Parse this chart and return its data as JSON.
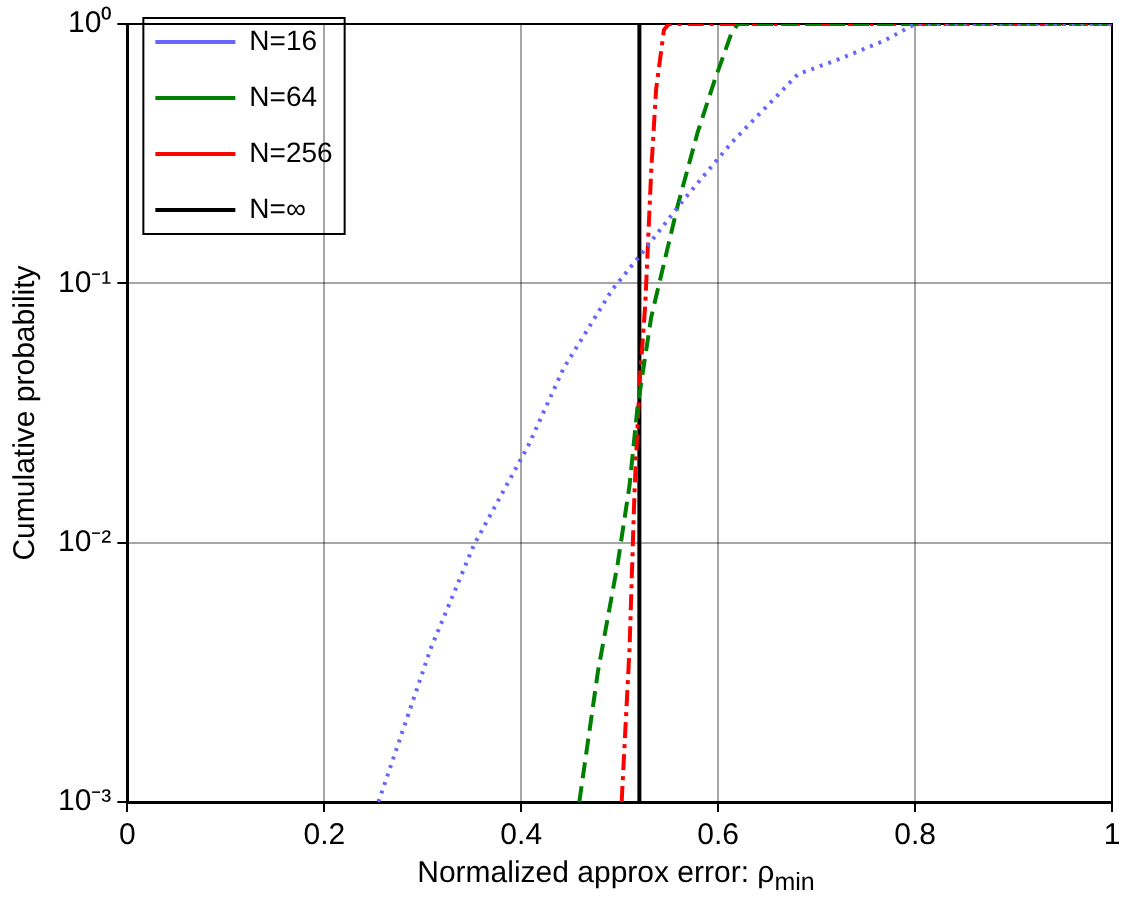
{
  "chart_data": {
    "type": "line",
    "xlabel": "Normalized approx error:  ρ$_{min}$",
    "ylabel": "Cumulative probability",
    "log": "y",
    "grid": true,
    "legend": "top left",
    "marker": "none",
    "xlim": [
      0,
      1
    ],
    "xticks": [
      0,
      0.2,
      0.4,
      0.6,
      0.8,
      1
    ],
    "ylim": [
      0.001,
      1
    ],
    "yticks": [
      {
        "value": 0.001,
        "label": "10⁻³"
      },
      {
        "value": 0.01,
        "label": "10⁻²"
      },
      {
        "value": 0.1,
        "label": "10⁻¹"
      },
      {
        "value": 1,
        "label": "10⁰"
      }
    ],
    "series": [
      {
        "name": "N=16",
        "color": "#6666ff",
        "line_style": "dotted",
        "x": [
          0.255,
          0.308,
          0.352,
          0.407,
          0.443,
          0.492,
          0.522,
          0.565,
          0.614,
          0.681,
          0.722,
          0.768,
          0.8,
          1
        ],
        "values": [
          0.001,
          0.0039,
          0.0098,
          0.0236,
          0.047,
          0.094,
          0.13,
          0.21,
          0.35,
          0.64,
          0.73,
          0.86,
          1,
          1
        ]
      },
      {
        "name": "N=64",
        "color": "#008000",
        "line_style": "dashed",
        "x": [
          0.459,
          0.478,
          0.498,
          0.51,
          0.518,
          0.532,
          0.559,
          0.579,
          0.596,
          0.613,
          0.62,
          1
        ],
        "values": [
          0.001,
          0.0032,
          0.0083,
          0.0166,
          0.033,
          0.074,
          0.2,
          0.38,
          0.6,
          0.91,
          1,
          1
        ]
      },
      {
        "name": "N=256",
        "color": "#ff0000",
        "line_style": "dashdot",
        "x": [
          0.502,
          0.51,
          0.515,
          0.52,
          0.526,
          0.532,
          0.537,
          0.545,
          0.55,
          1
        ],
        "values": [
          0.001,
          0.0039,
          0.0155,
          0.04,
          0.083,
          0.27,
          0.56,
          0.95,
          1,
          1
        ]
      },
      {
        "name": "N=∞",
        "color": "#000000",
        "line_style": "solid",
        "x": [
          0.52,
          0.52
        ],
        "values": [
          0.001,
          1
        ]
      }
    ]
  }
}
